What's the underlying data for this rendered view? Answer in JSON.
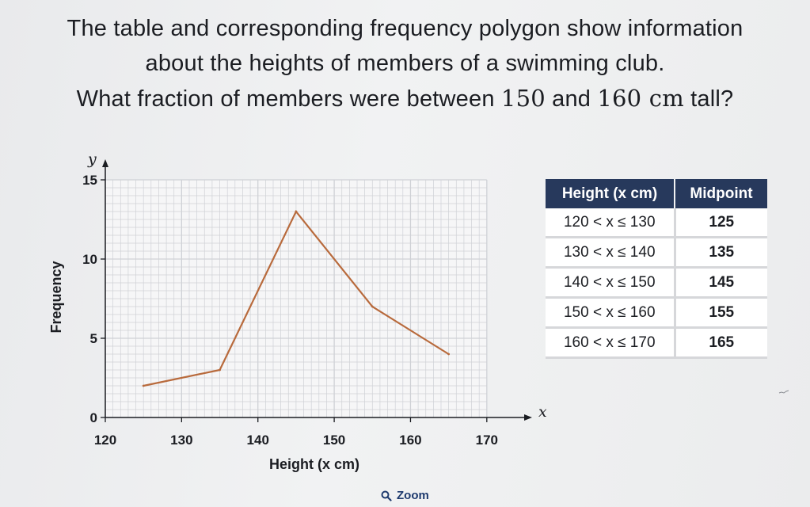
{
  "question": {
    "line1": "The table and corresponding frequency polygon show information",
    "line2": "about the heights of members of a swimming club.",
    "line3_before": "What fraction of members were between ",
    "line3_a": "150",
    "line3_mid": " and ",
    "line3_b": "160",
    "line3_unit": " cm",
    "line3_after": " tall?"
  },
  "chart_data": {
    "type": "line",
    "xlabel": "Height (x cm)",
    "ylabel": "Frequency",
    "x_axis_letter": "x",
    "y_axis_letter": "y",
    "xlim": [
      120,
      175
    ],
    "ylim": [
      0,
      15
    ],
    "x_ticks": [
      120,
      130,
      140,
      150,
      160,
      170
    ],
    "y_ticks": [
      0,
      5,
      10,
      15
    ],
    "grid": true,
    "series": [
      {
        "x": [
          125,
          135,
          145,
          155,
          165
        ],
        "y": [
          2,
          3,
          13,
          7,
          4
        ],
        "color": "#b86a3c"
      }
    ]
  },
  "table": {
    "headers": [
      "Height (x cm)",
      "Midpoint"
    ],
    "rows": [
      [
        "120 < x ≤ 130",
        "125"
      ],
      [
        "130 < x ≤ 140",
        "135"
      ],
      [
        "140 < x ≤ 150",
        "145"
      ],
      [
        "150 < x ≤ 160",
        "155"
      ],
      [
        "160 < x ≤ 170",
        "165"
      ]
    ]
  },
  "zoom": {
    "label": "Zoom",
    "icon": "magnifier-icon"
  },
  "colors": {
    "header_bg": "#27395c",
    "line": "#b86a3c",
    "grid": "#b9bcc3"
  }
}
